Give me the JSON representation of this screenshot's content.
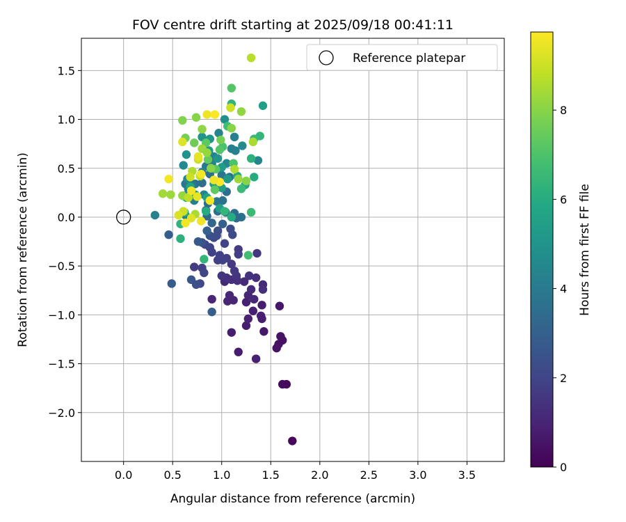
{
  "chart_data": {
    "type": "scatter",
    "title": "FOV centre drift starting at 2025/09/18 00:41:11",
    "xlabel": "Angular distance from reference (arcmin)",
    "ylabel": "Rotation from reference (arcmin)",
    "xlim": [
      -0.43,
      3.88
    ],
    "ylim": [
      -2.5,
      1.83
    ],
    "xticks": [
      "0.0",
      "0.5",
      "1.0",
      "1.5",
      "2.0",
      "2.5",
      "3.0",
      "3.5"
    ],
    "yticks": [
      "−2.0",
      "−1.5",
      "−1.0",
      "−0.5",
      "0.0",
      "0.5",
      "1.0",
      "1.5"
    ],
    "grid": true,
    "legend": {
      "placement": "top-right",
      "entries": [
        "Reference platepar"
      ]
    },
    "reference_point": {
      "x": 0.0,
      "y": 0.0,
      "label": "Reference platepar"
    },
    "colorbar": {
      "label": "Hours from first FF file",
      "colormap": "viridis",
      "range": [
        0,
        9.75
      ],
      "ticks": [
        "0",
        "2",
        "4",
        "6",
        "8"
      ]
    },
    "series": [
      {
        "value_key": "hours",
        "points": [
          {
            "x": 1.72,
            "y": -2.29,
            "hours": 0.2
          },
          {
            "x": 1.62,
            "y": -1.71,
            "hours": 0.3
          },
          {
            "x": 1.66,
            "y": -1.71,
            "hours": 0.3
          },
          {
            "x": 1.56,
            "y": -1.34,
            "hours": 0.5
          },
          {
            "x": 1.58,
            "y": -1.3,
            "hours": 0.5
          },
          {
            "x": 1.62,
            "y": -1.26,
            "hours": 0.4
          },
          {
            "x": 1.6,
            "y": -1.22,
            "hours": 0.5
          },
          {
            "x": 1.43,
            "y": -1.17,
            "hours": 0.6
          },
          {
            "x": 1.1,
            "y": -1.18,
            "hours": 0.8
          },
          {
            "x": 1.17,
            "y": -1.38,
            "hours": 0.8
          },
          {
            "x": 1.35,
            "y": -1.45,
            "hours": 0.9
          },
          {
            "x": 1.59,
            "y": -0.91,
            "hours": 0.6
          },
          {
            "x": 1.25,
            "y": -1.11,
            "hours": 0.8
          },
          {
            "x": 1.4,
            "y": -1.01,
            "hours": 0.9
          },
          {
            "x": 1.41,
            "y": -1.04,
            "hours": 0.8
          },
          {
            "x": 1.27,
            "y": -1.04,
            "hours": 0.9
          },
          {
            "x": 1.32,
            "y": -0.96,
            "hours": 0.9
          },
          {
            "x": 1.41,
            "y": -0.9,
            "hours": 0.8
          },
          {
            "x": 1.25,
            "y": -0.87,
            "hours": 0.9
          },
          {
            "x": 1.12,
            "y": -0.85,
            "hours": 1.0
          },
          {
            "x": 1.06,
            "y": -0.86,
            "hours": 1.0
          },
          {
            "x": 0.9,
            "y": -0.84,
            "hours": 1.0
          },
          {
            "x": 1.08,
            "y": -0.8,
            "hours": 1.1
          },
          {
            "x": 1.27,
            "y": -0.8,
            "hours": 1.0
          },
          {
            "x": 1.33,
            "y": -0.84,
            "hours": 1.1
          },
          {
            "x": 1.3,
            "y": -0.74,
            "hours": 1.2
          },
          {
            "x": 1.42,
            "y": -0.69,
            "hours": 1.2
          },
          {
            "x": 1.42,
            "y": -0.74,
            "hours": 1.3
          },
          {
            "x": 1.35,
            "y": -0.62,
            "hours": 1.3
          },
          {
            "x": 1.23,
            "y": -0.66,
            "hours": 1.2
          },
          {
            "x": 1.16,
            "y": -0.65,
            "hours": 1.3
          },
          {
            "x": 1.1,
            "y": -0.64,
            "hours": 1.3
          },
          {
            "x": 1.03,
            "y": -0.66,
            "hours": 1.1
          },
          {
            "x": 1.05,
            "y": -0.62,
            "hours": 1.4
          },
          {
            "x": 1.0,
            "y": -0.6,
            "hours": 1.5
          },
          {
            "x": 1.15,
            "y": -0.6,
            "hours": 1.5
          },
          {
            "x": 1.28,
            "y": -0.6,
            "hours": 1.4
          },
          {
            "x": 1.13,
            "y": -0.55,
            "hours": 1.6
          },
          {
            "x": 1.1,
            "y": -0.48,
            "hours": 1.6
          },
          {
            "x": 1.36,
            "y": -0.37,
            "hours": 1.6
          },
          {
            "x": 1.17,
            "y": -0.33,
            "hours": 1.7
          },
          {
            "x": 1.17,
            "y": -0.38,
            "hours": 1.8
          },
          {
            "x": 1.05,
            "y": -0.42,
            "hours": 1.8
          },
          {
            "x": 1.01,
            "y": -0.44,
            "hours": 1.9
          },
          {
            "x": 0.96,
            "y": -0.44,
            "hours": 1.8
          },
          {
            "x": 0.98,
            "y": -0.39,
            "hours": 1.9
          },
          {
            "x": 0.9,
            "y": -0.36,
            "hours": 1.9
          },
          {
            "x": 0.72,
            "y": -0.51,
            "hours": 1.7
          },
          {
            "x": 0.8,
            "y": -0.52,
            "hours": 1.9
          },
          {
            "x": 0.82,
            "y": -0.57,
            "hours": 2.0
          },
          {
            "x": 0.88,
            "y": -0.31,
            "hours": 2.0
          },
          {
            "x": 0.83,
            "y": -0.28,
            "hours": 2.0
          },
          {
            "x": 0.92,
            "y": -0.21,
            "hours": 2.1
          },
          {
            "x": 1.03,
            "y": -0.27,
            "hours": 2.0
          },
          {
            "x": 1.09,
            "y": -0.12,
            "hours": 2.2
          },
          {
            "x": 1.11,
            "y": -0.18,
            "hours": 2.2
          },
          {
            "x": 0.96,
            "y": -0.14,
            "hours": 2.3
          },
          {
            "x": 0.88,
            "y": -0.19,
            "hours": 2.4
          },
          {
            "x": 0.95,
            "y": -0.19,
            "hours": 2.3
          },
          {
            "x": 0.8,
            "y": -0.26,
            "hours": 2.5
          },
          {
            "x": 0.76,
            "y": -0.25,
            "hours": 2.7
          },
          {
            "x": 0.78,
            "y": -0.68,
            "hours": 2.1
          },
          {
            "x": 0.69,
            "y": -0.64,
            "hours": 2.6
          },
          {
            "x": 0.74,
            "y": -0.69,
            "hours": 2.3
          },
          {
            "x": 0.49,
            "y": -0.68,
            "hours": 2.8
          },
          {
            "x": 0.9,
            "y": -0.97,
            "hours": 2.9
          },
          {
            "x": 0.46,
            "y": -0.18,
            "hours": 2.9
          },
          {
            "x": 1.01,
            "y": -0.07,
            "hours": 3.0
          },
          {
            "x": 0.85,
            "y": -0.14,
            "hours": 3.1
          },
          {
            "x": 0.9,
            "y": -0.06,
            "hours": 3.2
          },
          {
            "x": 0.85,
            "y": 0.01,
            "hours": 3.3
          },
          {
            "x": 0.84,
            "y": 0.07,
            "hours": 3.4
          },
          {
            "x": 0.96,
            "y": 0.06,
            "hours": 3.5
          },
          {
            "x": 1.04,
            "y": 0.05,
            "hours": 3.4
          },
          {
            "x": 1.13,
            "y": 0.04,
            "hours": 3.6
          },
          {
            "x": 1.2,
            "y": 0.0,
            "hours": 3.6
          },
          {
            "x": 1.15,
            "y": -0.01,
            "hours": 3.4
          },
          {
            "x": 0.32,
            "y": 0.02,
            "hours": 4.2
          },
          {
            "x": 0.63,
            "y": 0.02,
            "hours": 4.0
          },
          {
            "x": 0.86,
            "y": 0.14,
            "hours": 3.6
          },
          {
            "x": 0.95,
            "y": 0.16,
            "hours": 3.8
          },
          {
            "x": 1.01,
            "y": 0.17,
            "hours": 3.7
          },
          {
            "x": 1.05,
            "y": 0.26,
            "hours": 3.5
          },
          {
            "x": 1.08,
            "y": 0.41,
            "hours": 3.6
          },
          {
            "x": 1.0,
            "y": 0.43,
            "hours": 3.8
          },
          {
            "x": 0.88,
            "y": 0.44,
            "hours": 3.6
          },
          {
            "x": 0.84,
            "y": 0.52,
            "hours": 3.9
          },
          {
            "x": 0.8,
            "y": 0.35,
            "hours": 3.5
          },
          {
            "x": 0.73,
            "y": 0.34,
            "hours": 3.6
          },
          {
            "x": 0.7,
            "y": 0.33,
            "hours": 3.9
          },
          {
            "x": 0.63,
            "y": 0.34,
            "hours": 3.8
          },
          {
            "x": 0.66,
            "y": 0.29,
            "hours": 4.1
          },
          {
            "x": 0.61,
            "y": 0.22,
            "hours": 4.2
          },
          {
            "x": 0.82,
            "y": 0.23,
            "hours": 4.4
          },
          {
            "x": 0.72,
            "y": 0.17,
            "hours": 4.1
          },
          {
            "x": 0.65,
            "y": 0.39,
            "hours": 4.5
          },
          {
            "x": 0.61,
            "y": 0.53,
            "hours": 4.6
          },
          {
            "x": 0.8,
            "y": 0.46,
            "hours": 4.4
          },
          {
            "x": 0.9,
            "y": 0.55,
            "hours": 4.2
          },
          {
            "x": 0.92,
            "y": 0.62,
            "hours": 4.3
          },
          {
            "x": 1.05,
            "y": 0.55,
            "hours": 4.5
          },
          {
            "x": 1.1,
            "y": 0.7,
            "hours": 4.1
          },
          {
            "x": 1.14,
            "y": 0.68,
            "hours": 4.2
          },
          {
            "x": 1.21,
            "y": 0.73,
            "hours": 4.6
          },
          {
            "x": 1.37,
            "y": 0.58,
            "hours": 4.4
          },
          {
            "x": 1.13,
            "y": 0.82,
            "hours": 4.2
          },
          {
            "x": 0.97,
            "y": 0.86,
            "hours": 4.4
          },
          {
            "x": 1.03,
            "y": 1.0,
            "hours": 4.8
          },
          {
            "x": 0.64,
            "y": 0.64,
            "hours": 4.9
          },
          {
            "x": 0.88,
            "y": 0.8,
            "hours": 5.1
          },
          {
            "x": 0.8,
            "y": 0.82,
            "hours": 5.0
          },
          {
            "x": 0.87,
            "y": 0.68,
            "hours": 5.2
          },
          {
            "x": 0.96,
            "y": 0.6,
            "hours": 5.0
          },
          {
            "x": 1.0,
            "y": 0.51,
            "hours": 5.3
          },
          {
            "x": 1.06,
            "y": 0.39,
            "hours": 5.2
          },
          {
            "x": 1.0,
            "y": 0.3,
            "hours": 5.4
          },
          {
            "x": 0.92,
            "y": 0.34,
            "hours": 5.4
          },
          {
            "x": 0.98,
            "y": 0.09,
            "hours": 5.5
          },
          {
            "x": 0.85,
            "y": 0.2,
            "hours": 5.6
          },
          {
            "x": 0.73,
            "y": 0.23,
            "hours": 5.5
          },
          {
            "x": 0.68,
            "y": 0.31,
            "hours": 5.7
          },
          {
            "x": 0.64,
            "y": 0.2,
            "hours": 5.9
          },
          {
            "x": 0.62,
            "y": 0.05,
            "hours": 6.1
          },
          {
            "x": 0.58,
            "y": -0.07,
            "hours": 6.3
          },
          {
            "x": 0.58,
            "y": -0.22,
            "hours": 6.2
          },
          {
            "x": 0.82,
            "y": -0.43,
            "hours": 6.4
          },
          {
            "x": 0.84,
            "y": 0.06,
            "hours": 6.0
          },
          {
            "x": 1.03,
            "y": 0.06,
            "hours": 6.4
          },
          {
            "x": 1.1,
            "y": 0.0,
            "hours": 6.0
          },
          {
            "x": 1.24,
            "y": 0.33,
            "hours": 5.8
          },
          {
            "x": 1.33,
            "y": 0.41,
            "hours": 6.0
          },
          {
            "x": 1.16,
            "y": 0.42,
            "hours": 5.9
          },
          {
            "x": 1.3,
            "y": 0.05,
            "hours": 6.6
          },
          {
            "x": 1.2,
            "y": 0.29,
            "hours": 6.6
          },
          {
            "x": 1.27,
            "y": -0.39,
            "hours": 6.8
          },
          {
            "x": 1.42,
            "y": 1.14,
            "hours": 5.5
          },
          {
            "x": 1.1,
            "y": 1.16,
            "hours": 6.3
          },
          {
            "x": 1.1,
            "y": 1.32,
            "hours": 7.1
          },
          {
            "x": 1.3,
            "y": 0.6,
            "hours": 6.2
          },
          {
            "x": 1.39,
            "y": 0.83,
            "hours": 6.4
          },
          {
            "x": 1.33,
            "y": 0.8,
            "hours": 6.6
          },
          {
            "x": 1.06,
            "y": 0.93,
            "hours": 6.7
          },
          {
            "x": 1.01,
            "y": 0.72,
            "hours": 6.9
          },
          {
            "x": 1.12,
            "y": 0.55,
            "hours": 7.0
          },
          {
            "x": 0.98,
            "y": 0.69,
            "hours": 7.1
          },
          {
            "x": 0.94,
            "y": 0.49,
            "hours": 7.2
          },
          {
            "x": 0.93,
            "y": 0.28,
            "hours": 7.3
          },
          {
            "x": 0.86,
            "y": 0.59,
            "hours": 7.4
          },
          {
            "x": 0.84,
            "y": 0.76,
            "hours": 7.3
          },
          {
            "x": 0.72,
            "y": 0.76,
            "hours": 7.6
          },
          {
            "x": 0.63,
            "y": 0.81,
            "hours": 7.7
          },
          {
            "x": 0.6,
            "y": 0.99,
            "hours": 7.9
          },
          {
            "x": 0.74,
            "y": 1.02,
            "hours": 8.0
          },
          {
            "x": 0.8,
            "y": 0.9,
            "hours": 8.1
          },
          {
            "x": 0.8,
            "y": 0.7,
            "hours": 8.3
          },
          {
            "x": 0.85,
            "y": 0.66,
            "hours": 8.2
          },
          {
            "x": 0.89,
            "y": 0.5,
            "hours": 8.0
          },
          {
            "x": 0.99,
            "y": 0.79,
            "hours": 7.7
          },
          {
            "x": 1.1,
            "y": 0.91,
            "hours": 8.0
          },
          {
            "x": 1.2,
            "y": 1.08,
            "hours": 8.1
          },
          {
            "x": 1.13,
            "y": 0.49,
            "hours": 8.6
          },
          {
            "x": 1.17,
            "y": 0.39,
            "hours": 8.3
          },
          {
            "x": 1.25,
            "y": 0.37,
            "hours": 8.0
          },
          {
            "x": 1.3,
            "y": 1.63,
            "hours": 8.7
          },
          {
            "x": 1.32,
            "y": 0.77,
            "hours": 8.5
          },
          {
            "x": 0.48,
            "y": 0.23,
            "hours": 8.3
          },
          {
            "x": 0.4,
            "y": 0.24,
            "hours": 8.4
          },
          {
            "x": 0.6,
            "y": 0.22,
            "hours": 8.2
          },
          {
            "x": 0.7,
            "y": 0.47,
            "hours": 8.6
          },
          {
            "x": 0.78,
            "y": 0.42,
            "hours": 8.8
          },
          {
            "x": 0.76,
            "y": 0.59,
            "hours": 9.0
          },
          {
            "x": 0.68,
            "y": 0.41,
            "hours": 9.0
          },
          {
            "x": 0.66,
            "y": 0.2,
            "hours": 8.8
          },
          {
            "x": 0.61,
            "y": 0.06,
            "hours": 9.0
          },
          {
            "x": 0.73,
            "y": 0.03,
            "hours": 8.5
          },
          {
            "x": 0.56,
            "y": 0.02,
            "hours": 9.2
          },
          {
            "x": 0.69,
            "y": -0.01,
            "hours": 9.3
          },
          {
            "x": 0.79,
            "y": -0.04,
            "hours": 9.5
          },
          {
            "x": 0.63,
            "y": -0.06,
            "hours": 9.6
          },
          {
            "x": 0.69,
            "y": 0.27,
            "hours": 9.5
          },
          {
            "x": 0.75,
            "y": 0.21,
            "hours": 9.4
          },
          {
            "x": 0.88,
            "y": 0.17,
            "hours": 9.6
          },
          {
            "x": 0.98,
            "y": 0.36,
            "hours": 9.7
          },
          {
            "x": 0.92,
            "y": 0.38,
            "hours": 9.5
          },
          {
            "x": 0.79,
            "y": 0.44,
            "hours": 9.6
          },
          {
            "x": 0.76,
            "y": 0.62,
            "hours": 9.4
          },
          {
            "x": 0.6,
            "y": 0.77,
            "hours": 9.3
          },
          {
            "x": 0.46,
            "y": 0.39,
            "hours": 9.6
          },
          {
            "x": 0.85,
            "y": 1.05,
            "hours": 9.5
          },
          {
            "x": 0.93,
            "y": 1.05,
            "hours": 9.7
          },
          {
            "x": 1.09,
            "y": 1.12,
            "hours": 9.0
          }
        ]
      }
    ]
  }
}
